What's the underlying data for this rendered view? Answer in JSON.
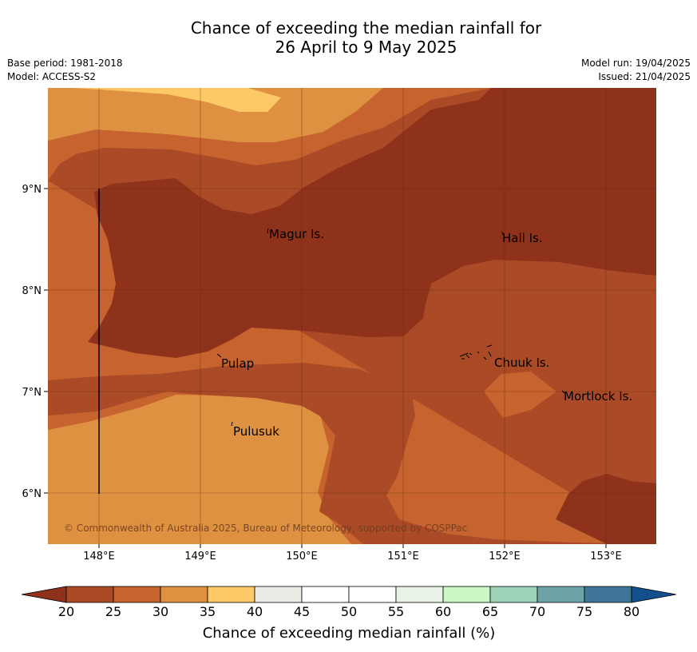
{
  "title": {
    "line1": "Chance of exceeding the median rainfall for",
    "line2": "26 April to 9 May 2025"
  },
  "meta": {
    "base_period": "Base period: 1981-2018",
    "model": "Model: ACCESS-S2",
    "model_run": "Model run: 19/04/2025",
    "issued": "Issued: 21/04/2025"
  },
  "map": {
    "x_ticks": [
      "148°E",
      "149°E",
      "150°E",
      "151°E",
      "152°E",
      "153°E"
    ],
    "y_ticks": [
      "9°N",
      "8°N",
      "7°N",
      "6°N"
    ],
    "places": [
      "Magur Is.",
      "Hall Is.",
      "Pulap",
      "Chuuk Is.",
      "Mortlock Is.",
      "Pulusuk"
    ],
    "copyright": "© Commonwealth of Australia 2025, Bureau of Meteorology, supported by COSPPac"
  },
  "colorbar": {
    "ticks": [
      "20",
      "25",
      "30",
      "35",
      "40",
      "45",
      "50",
      "55",
      "60",
      "65",
      "70",
      "75",
      "80"
    ],
    "colors": [
      "#aa4a26",
      "#c6632f",
      "#de9140",
      "#fdc966",
      "#ecebe6",
      "#ffffff",
      "#ffffff",
      "#e8f3e6",
      "#c9f7c5",
      "#9dd2b8",
      "#6ea4a8",
      "#3f7698"
    ],
    "low_color": "#8e321c",
    "high_color": "#12508d",
    "label": "Chance of exceeding median rainfall (%)"
  }
}
